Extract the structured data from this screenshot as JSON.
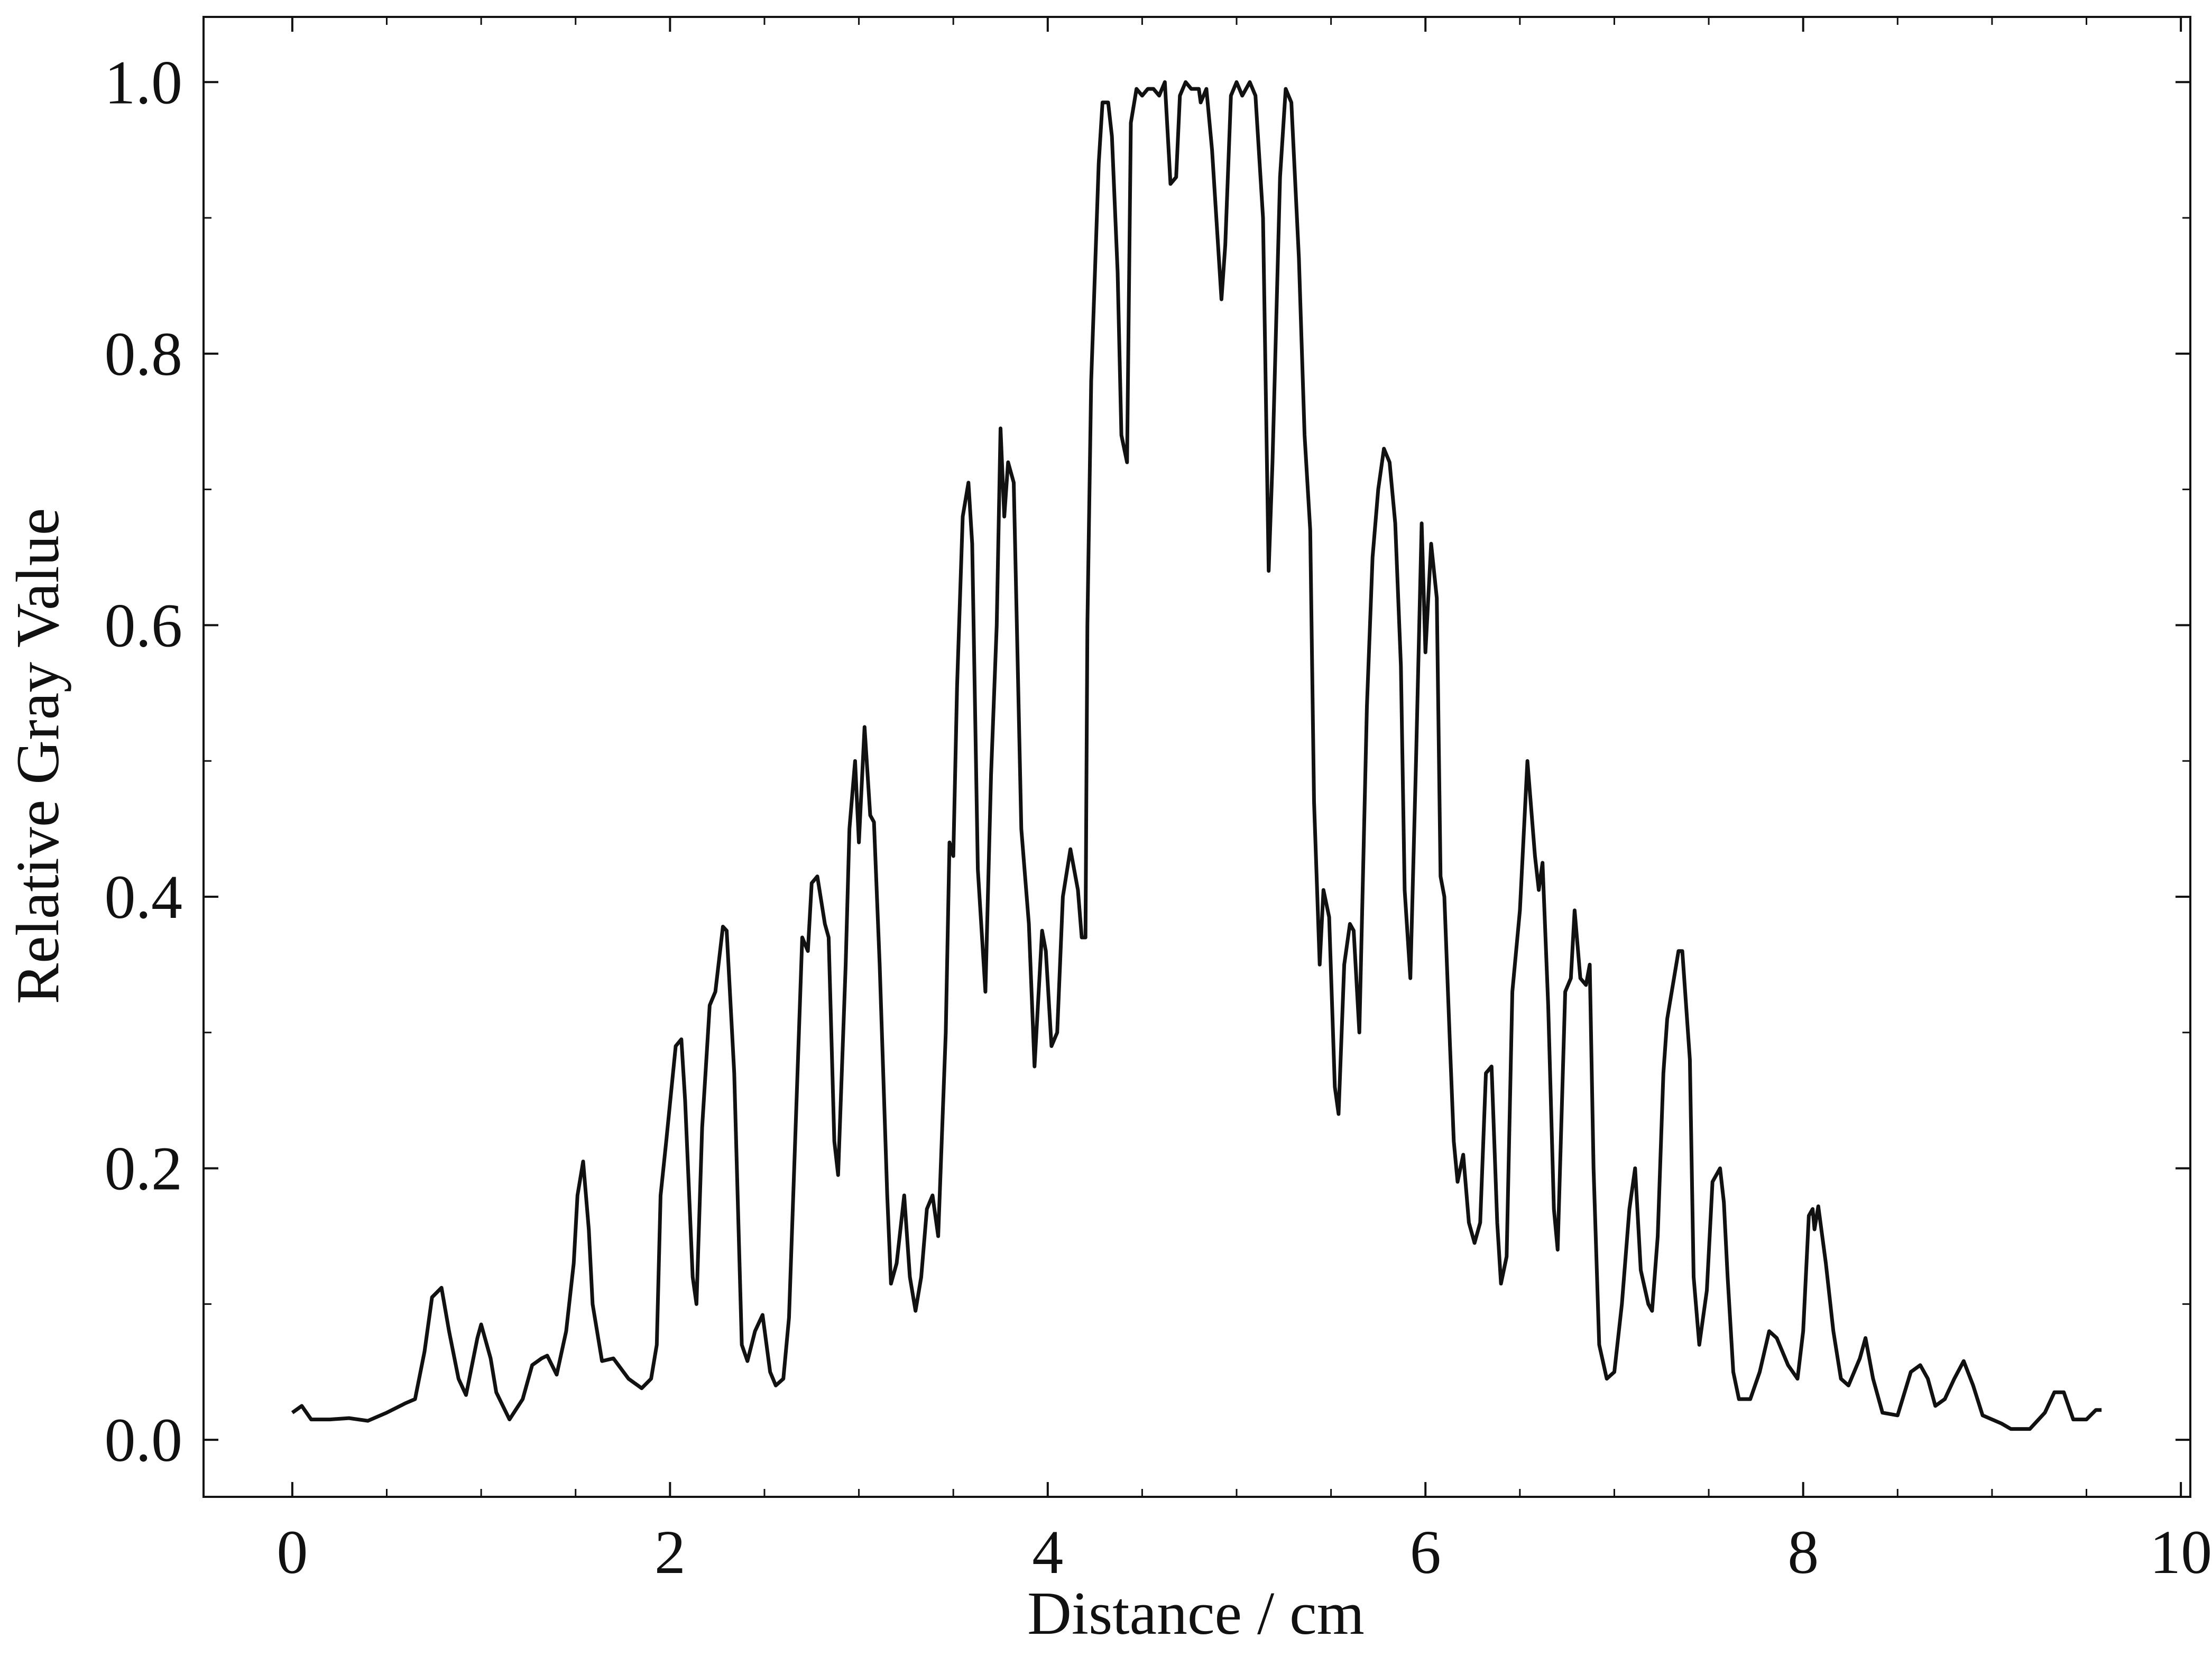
{
  "chart_data": {
    "type": "line",
    "xlabel": "Distance / cm",
    "ylabel": "Relative Gray Value",
    "xlim": [
      -0.47,
      10.05
    ],
    "ylim": [
      -0.042,
      1.048
    ],
    "xticks": [
      0,
      2,
      4,
      6,
      8,
      10
    ],
    "yticks": [
      {
        "value": 0,
        "label": "0.0"
      },
      0.2,
      0.4,
      0.6,
      0.8,
      {
        "value": 1,
        "label": "1.0"
      }
    ],
    "xminorticks": [
      0.5,
      1,
      1.5,
      2.5,
      3,
      3.5,
      4.5,
      5,
      5.5,
      6.5,
      7,
      7.5,
      8.5,
      9,
      9.5
    ],
    "yminorticks": [
      0.1,
      0.3,
      0.5,
      0.7,
      0.9
    ],
    "color": "#111111",
    "x": [
      0.0,
      0.05,
      0.1,
      0.2,
      0.3,
      0.4,
      0.5,
      0.6,
      0.65,
      0.7,
      0.74,
      0.79,
      0.83,
      0.88,
      0.92,
      0.98,
      1.0,
      1.05,
      1.08,
      1.15,
      1.22,
      1.27,
      1.32,
      1.35,
      1.4,
      1.45,
      1.49,
      1.51,
      1.54,
      1.57,
      1.59,
      1.64,
      1.7,
      1.78,
      1.85,
      1.9,
      1.93,
      1.95,
      1.98,
      2.03,
      2.06,
      2.08,
      2.12,
      2.14,
      2.17,
      2.21,
      2.24,
      2.28,
      2.3,
      2.34,
      2.38,
      2.41,
      2.45,
      2.49,
      2.53,
      2.56,
      2.6,
      2.63,
      2.67,
      2.7,
      2.73,
      2.75,
      2.78,
      2.82,
      2.84,
      2.87,
      2.89,
      2.93,
      2.95,
      2.98,
      3.0,
      3.03,
      3.06,
      3.08,
      3.11,
      3.15,
      3.17,
      3.2,
      3.24,
      3.27,
      3.3,
      3.33,
      3.36,
      3.39,
      3.42,
      3.46,
      3.48,
      3.5,
      3.52,
      3.55,
      3.58,
      3.6,
      3.63,
      3.67,
      3.7,
      3.73,
      3.75,
      3.77,
      3.79,
      3.82,
      3.86,
      3.9,
      3.93,
      3.97,
      3.99,
      4.02,
      4.05,
      4.08,
      4.12,
      4.16,
      4.18,
      4.2,
      4.21,
      4.23,
      4.25,
      4.27,
      4.29,
      4.32,
      4.34,
      4.37,
      4.39,
      4.42,
      4.44,
      4.47,
      4.5,
      4.53,
      4.56,
      4.59,
      4.62,
      4.65,
      4.68,
      4.7,
      4.73,
      4.76,
      4.8,
      4.81,
      4.84,
      4.87,
      4.92,
      4.94,
      4.97,
      5.0,
      5.03,
      5.07,
      5.1,
      5.14,
      5.17,
      5.19,
      5.23,
      5.26,
      5.29,
      5.33,
      5.36,
      5.39,
      5.41,
      5.44,
      5.46,
      5.49,
      5.52,
      5.54,
      5.57,
      5.6,
      5.62,
      5.65,
      5.69,
      5.72,
      5.75,
      5.78,
      5.81,
      5.84,
      5.87,
      5.89,
      5.92,
      5.95,
      5.98,
      6.0,
      6.03,
      6.06,
      6.08,
      6.1,
      6.13,
      6.15,
      6.17,
      6.2,
      6.23,
      6.26,
      6.29,
      6.32,
      6.35,
      6.38,
      6.4,
      6.43,
      6.46,
      6.5,
      6.54,
      6.58,
      6.6,
      6.62,
      6.65,
      6.68,
      6.7,
      6.74,
      6.77,
      6.79,
      6.82,
      6.85,
      6.87,
      6.89,
      6.92,
      6.96,
      7.0,
      7.04,
      7.08,
      7.11,
      7.14,
      7.18,
      7.2,
      7.23,
      7.26,
      7.28,
      7.31,
      7.34,
      7.36,
      7.4,
      7.42,
      7.45,
      7.49,
      7.52,
      7.56,
      7.58,
      7.6,
      7.63,
      7.66,
      7.72,
      7.77,
      7.82,
      7.86,
      7.92,
      7.97,
      8.0,
      8.03,
      8.05,
      8.06,
      8.08,
      8.12,
      8.16,
      8.2,
      8.24,
      8.3,
      8.33,
      8.37,
      8.42,
      8.5,
      8.57,
      8.62,
      8.66,
      8.7,
      8.75,
      8.8,
      8.85,
      8.9,
      8.95,
      9.05,
      9.1,
      9.2,
      9.28,
      9.33,
      9.38,
      9.43,
      9.5,
      9.55,
      9.58
    ],
    "values": [
      0.02,
      0.025,
      0.015,
      0.015,
      0.016,
      0.014,
      0.02,
      0.027,
      0.03,
      0.065,
      0.105,
      0.112,
      0.08,
      0.045,
      0.033,
      0.075,
      0.085,
      0.06,
      0.035,
      0.015,
      0.03,
      0.055,
      0.06,
      0.062,
      0.048,
      0.08,
      0.13,
      0.18,
      0.205,
      0.155,
      0.1,
      0.058,
      0.06,
      0.045,
      0.038,
      0.045,
      0.07,
      0.18,
      0.22,
      0.29,
      0.295,
      0.25,
      0.12,
      0.1,
      0.23,
      0.32,
      0.33,
      0.378,
      0.375,
      0.27,
      0.07,
      0.058,
      0.08,
      0.092,
      0.05,
      0.04,
      0.045,
      0.09,
      0.25,
      0.37,
      0.36,
      0.41,
      0.415,
      0.38,
      0.37,
      0.22,
      0.195,
      0.35,
      0.45,
      0.5,
      0.44,
      0.525,
      0.46,
      0.455,
      0.35,
      0.18,
      0.115,
      0.13,
      0.18,
      0.12,
      0.095,
      0.12,
      0.17,
      0.18,
      0.15,
      0.3,
      0.44,
      0.43,
      0.555,
      0.68,
      0.705,
      0.66,
      0.42,
      0.33,
      0.49,
      0.6,
      0.745,
      0.68,
      0.72,
      0.705,
      0.45,
      0.38,
      0.275,
      0.375,
      0.36,
      0.29,
      0.3,
      0.4,
      0.435,
      0.405,
      0.37,
      0.37,
      0.6,
      0.78,
      0.86,
      0.94,
      0.985,
      0.985,
      0.96,
      0.86,
      0.74,
      0.72,
      0.97,
      0.995,
      0.99,
      0.995,
      0.995,
      0.99,
      1.0,
      0.925,
      0.93,
      0.99,
      1.0,
      0.995,
      0.995,
      0.985,
      0.995,
      0.95,
      0.84,
      0.88,
      0.99,
      1.0,
      0.99,
      1.0,
      0.99,
      0.9,
      0.64,
      0.72,
      0.93,
      0.995,
      0.985,
      0.87,
      0.74,
      0.67,
      0.47,
      0.35,
      0.405,
      0.385,
      0.26,
      0.24,
      0.35,
      0.38,
      0.375,
      0.3,
      0.54,
      0.65,
      0.7,
      0.73,
      0.72,
      0.675,
      0.57,
      0.405,
      0.34,
      0.5,
      0.675,
      0.58,
      0.66,
      0.62,
      0.415,
      0.4,
      0.29,
      0.22,
      0.19,
      0.21,
      0.16,
      0.145,
      0.16,
      0.27,
      0.275,
      0.16,
      0.115,
      0.135,
      0.33,
      0.39,
      0.5,
      0.43,
      0.405,
      0.425,
      0.32,
      0.17,
      0.14,
      0.33,
      0.34,
      0.39,
      0.34,
      0.335,
      0.35,
      0.2,
      0.07,
      0.045,
      0.05,
      0.1,
      0.17,
      0.2,
      0.125,
      0.1,
      0.095,
      0.15,
      0.27,
      0.31,
      0.335,
      0.36,
      0.36,
      0.28,
      0.12,
      0.07,
      0.11,
      0.19,
      0.2,
      0.175,
      0.12,
      0.05,
      0.03,
      0.03,
      0.05,
      0.08,
      0.075,
      0.055,
      0.045,
      0.08,
      0.165,
      0.17,
      0.155,
      0.172,
      0.13,
      0.08,
      0.045,
      0.04,
      0.06,
      0.075,
      0.045,
      0.02,
      0.018,
      0.05,
      0.055,
      0.045,
      0.025,
      0.03,
      0.045,
      0.058,
      0.04,
      0.018,
      0.012,
      0.008,
      0.008,
      0.02,
      0.035,
      0.035,
      0.015,
      0.015,
      0.022,
      0.022
    ]
  }
}
